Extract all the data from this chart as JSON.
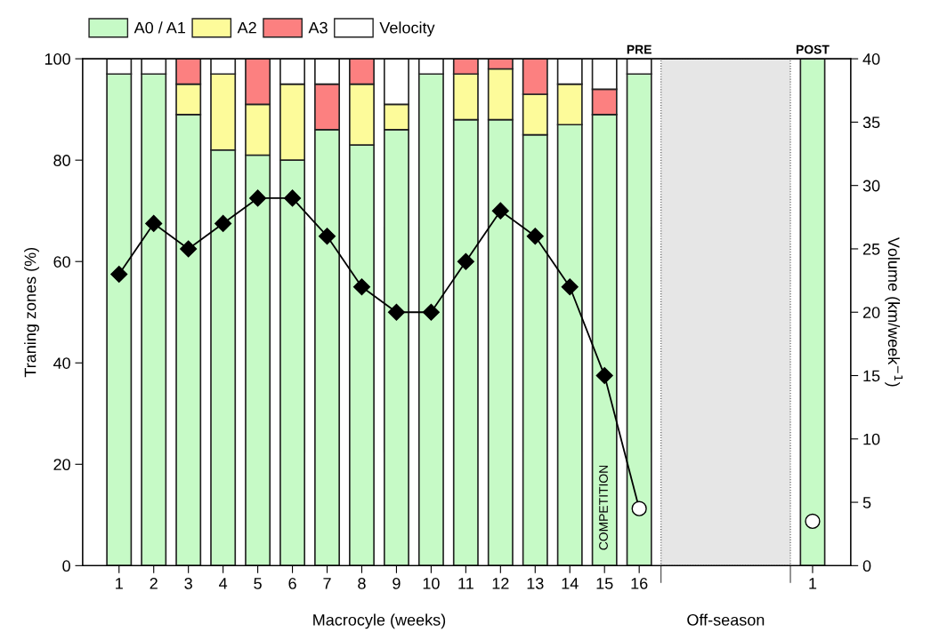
{
  "chart_data": {
    "type": "bar",
    "stacked": true,
    "xlabel": "Macrocyle (weeks)",
    "ylabel": "Traning zones (%)",
    "y2label": "Volume (km/week$^{−1}$)",
    "categories": [
      "1",
      "2",
      "3",
      "4",
      "5",
      "6",
      "7",
      "8",
      "9",
      "10",
      "11",
      "12",
      "13",
      "14",
      "15",
      "16",
      null,
      null,
      null,
      null,
      "1"
    ],
    "series": [
      {
        "name": "A0 / A1",
        "color": "#c6fac6",
        "values": [
          97,
          97,
          89,
          82,
          81,
          80,
          86,
          83,
          86,
          97,
          88,
          88,
          85,
          87,
          89,
          97,
          null,
          null,
          null,
          null,
          100
        ]
      },
      {
        "name": "A2",
        "color": "#fdfb9a",
        "values": [
          null,
          null,
          6,
          15,
          10,
          15,
          null,
          12,
          5,
          null,
          9,
          10,
          8,
          8,
          null,
          null,
          null,
          null,
          null,
          null,
          null
        ]
      },
      {
        "name": "A3",
        "color": "#fc8080",
        "values": [
          null,
          null,
          5,
          null,
          9,
          null,
          9,
          5,
          null,
          null,
          3,
          2,
          7,
          null,
          5,
          null,
          null,
          null,
          null,
          null,
          null
        ]
      },
      {
        "name": "Velocity",
        "color": "#ffffff",
        "values": [
          3,
          3,
          null,
          3,
          null,
          5,
          5,
          null,
          9,
          3,
          null,
          null,
          null,
          5,
          6,
          3,
          null,
          null,
          null,
          null,
          null
        ]
      },
      {
        "type": "line",
        "axis": "y2",
        "color": "#000000",
        "marker": "diamond",
        "values": [
          23,
          27,
          25,
          27,
          29,
          29,
          26,
          22,
          20,
          20,
          24,
          28,
          26,
          22,
          15,
          null,
          null,
          null,
          null,
          null,
          null
        ]
      },
      {
        "type": "line",
        "axis": "y2",
        "color": "#000000",
        "values": [
          null,
          null,
          null,
          null,
          null,
          null,
          null,
          null,
          null,
          null,
          null,
          null,
          null,
          null,
          15,
          4.5,
          null,
          null,
          null,
          null,
          null
        ]
      },
      {
        "type": "scatter",
        "axis": "y2",
        "color": "#ffffff",
        "marker": "circle",
        "values": [
          null,
          null,
          null,
          null,
          null,
          null,
          null,
          null,
          null,
          null,
          null,
          null,
          null,
          null,
          null,
          4.5,
          null,
          null,
          null,
          null,
          3.5
        ]
      }
    ],
    "ylim": [
      0,
      100
    ],
    "yticks": [
      0,
      20,
      40,
      60,
      80,
      100
    ],
    "y2lim": [
      0,
      40
    ],
    "y2ticks": [
      0,
      5,
      10,
      15,
      20,
      25,
      30,
      35,
      40
    ],
    "annotations": [
      {
        "text": "PRE",
        "x": "16",
        "y": 100
      },
      "POST",
      "COMPETITION",
      "Off-season"
    ],
    "legend": "top left"
  }
}
